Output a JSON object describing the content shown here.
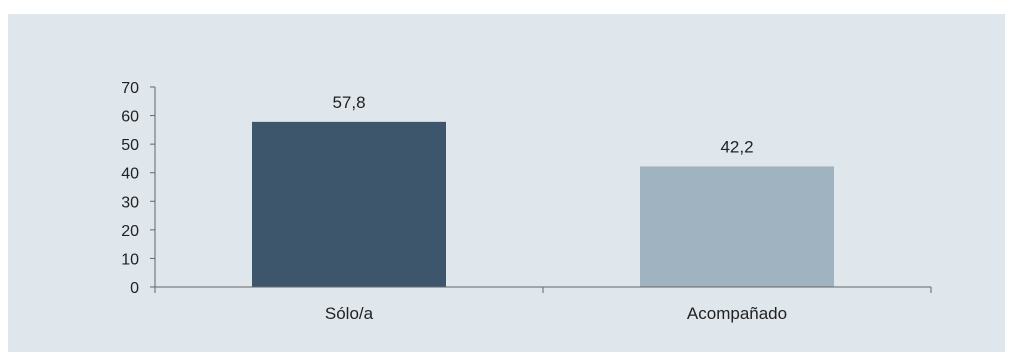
{
  "chart_data": {
    "type": "bar",
    "categories": [
      "Sólo/a",
      "Acompañado"
    ],
    "values": [
      57.8,
      42.2
    ],
    "value_labels": [
      "57,8",
      "42,2"
    ],
    "title": "",
    "xlabel": "",
    "ylabel": "",
    "ylim": [
      0,
      70
    ],
    "yticks": [
      "0",
      "10",
      "20",
      "30",
      "40",
      "50",
      "60",
      "70"
    ],
    "grid": false,
    "legend": "none",
    "colors": [
      "#3d566b",
      "#9fb4c0"
    ],
    "axis_color": "#666666"
  }
}
